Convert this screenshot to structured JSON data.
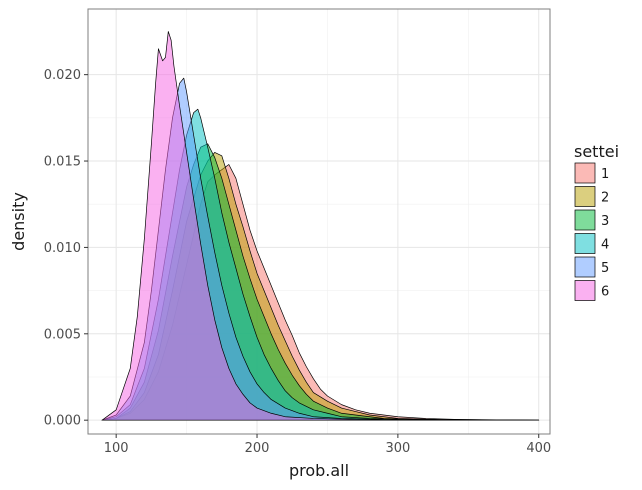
{
  "chart_data": {
    "type": "area",
    "subtype": "density",
    "title": "",
    "xlabel": "prob.all",
    "ylabel": "density",
    "xlim": [
      80,
      408
    ],
    "ylim": [
      -0.0008,
      0.0238
    ],
    "x_ticks": [
      100,
      200,
      300,
      400
    ],
    "y_ticks": [
      0.0,
      0.005,
      0.01,
      0.015,
      0.02
    ],
    "x_tick_labels": [
      "100",
      "200",
      "300",
      "400"
    ],
    "y_tick_labels": [
      "0.000",
      "0.005",
      "0.010",
      "0.015",
      "0.020"
    ],
    "grid": true,
    "legend": {
      "title": "settei",
      "position": "right"
    },
    "series": [
      {
        "name": "1",
        "color": "#F8766D",
        "points": [
          [
            90,
            0
          ],
          [
            100,
            0.0001
          ],
          [
            110,
            0.0004
          ],
          [
            120,
            0.0012
          ],
          [
            130,
            0.0028
          ],
          [
            140,
            0.0055
          ],
          [
            150,
            0.009
          ],
          [
            160,
            0.0125
          ],
          [
            165,
            0.0138
          ],
          [
            170,
            0.0142
          ],
          [
            175,
            0.0145
          ],
          [
            180,
            0.0148
          ],
          [
            185,
            0.014
          ],
          [
            190,
            0.0125
          ],
          [
            195,
            0.011
          ],
          [
            200,
            0.0098
          ],
          [
            205,
            0.0088
          ],
          [
            210,
            0.0078
          ],
          [
            215,
            0.0068
          ],
          [
            220,
            0.0058
          ],
          [
            225,
            0.0049
          ],
          [
            230,
            0.0039
          ],
          [
            235,
            0.0031
          ],
          [
            240,
            0.0024
          ],
          [
            245,
            0.0018
          ],
          [
            250,
            0.0014
          ],
          [
            260,
            0.0009
          ],
          [
            270,
            0.0006
          ],
          [
            280,
            0.0004
          ],
          [
            290,
            0.0003
          ],
          [
            300,
            0.0002
          ],
          [
            320,
            0.0001
          ],
          [
            340,
            5e-05
          ],
          [
            370,
            2e-05
          ],
          [
            400,
            0
          ]
        ]
      },
      {
        "name": "2",
        "color": "#B79F00",
        "points": [
          [
            90,
            0
          ],
          [
            100,
            0.0001
          ],
          [
            110,
            0.0005
          ],
          [
            120,
            0.0016
          ],
          [
            130,
            0.0038
          ],
          [
            140,
            0.0075
          ],
          [
            150,
            0.0115
          ],
          [
            160,
            0.0142
          ],
          [
            165,
            0.015
          ],
          [
            170,
            0.0155
          ],
          [
            175,
            0.0153
          ],
          [
            180,
            0.014
          ],
          [
            185,
            0.0125
          ],
          [
            190,
            0.0112
          ],
          [
            195,
            0.0098
          ],
          [
            200,
            0.0085
          ],
          [
            205,
            0.0075
          ],
          [
            210,
            0.0065
          ],
          [
            215,
            0.0055
          ],
          [
            220,
            0.0046
          ],
          [
            225,
            0.0037
          ],
          [
            230,
            0.0029
          ],
          [
            235,
            0.0022
          ],
          [
            240,
            0.0016
          ],
          [
            250,
            0.0011
          ],
          [
            260,
            0.0007
          ],
          [
            270,
            0.0005
          ],
          [
            280,
            0.0003
          ],
          [
            300,
            0.0001
          ],
          [
            330,
            4e-05
          ],
          [
            370,
            1e-05
          ],
          [
            400,
            0
          ]
        ]
      },
      {
        "name": "3",
        "color": "#00BA38",
        "points": [
          [
            90,
            0
          ],
          [
            100,
            0.0001
          ],
          [
            110,
            0.0007
          ],
          [
            120,
            0.0022
          ],
          [
            130,
            0.0052
          ],
          [
            140,
            0.0095
          ],
          [
            150,
            0.0135
          ],
          [
            155,
            0.0148
          ],
          [
            160,
            0.0158
          ],
          [
            165,
            0.016
          ],
          [
            170,
            0.0152
          ],
          [
            175,
            0.014
          ],
          [
            180,
            0.0125
          ],
          [
            185,
            0.011
          ],
          [
            190,
            0.0095
          ],
          [
            195,
            0.0082
          ],
          [
            200,
            0.007
          ],
          [
            205,
            0.006
          ],
          [
            210,
            0.005
          ],
          [
            215,
            0.0041
          ],
          [
            220,
            0.0033
          ],
          [
            225,
            0.0026
          ],
          [
            230,
            0.002
          ],
          [
            235,
            0.0015
          ],
          [
            240,
            0.0011
          ],
          [
            250,
            0.0007
          ],
          [
            260,
            0.0004
          ],
          [
            270,
            0.0003
          ],
          [
            290,
            0.0001
          ],
          [
            320,
            3e-05
          ],
          [
            360,
            1e-05
          ],
          [
            400,
            0
          ]
        ]
      },
      {
        "name": "4",
        "color": "#00BFC4",
        "points": [
          [
            90,
            0
          ],
          [
            100,
            0.0002
          ],
          [
            110,
            0.0009
          ],
          [
            120,
            0.003
          ],
          [
            130,
            0.007
          ],
          [
            140,
            0.012
          ],
          [
            145,
            0.0145
          ],
          [
            150,
            0.0165
          ],
          [
            155,
            0.0178
          ],
          [
            158,
            0.018
          ],
          [
            160,
            0.0175
          ],
          [
            165,
            0.0158
          ],
          [
            170,
            0.014
          ],
          [
            175,
            0.012
          ],
          [
            180,
            0.0103
          ],
          [
            185,
            0.0088
          ],
          [
            190,
            0.0073
          ],
          [
            195,
            0.006
          ],
          [
            200,
            0.0048
          ],
          [
            205,
            0.0038
          ],
          [
            210,
            0.003
          ],
          [
            215,
            0.0023
          ],
          [
            220,
            0.0017
          ],
          [
            225,
            0.0013
          ],
          [
            230,
            0.001
          ],
          [
            240,
            0.0006
          ],
          [
            250,
            0.0004
          ],
          [
            260,
            0.0002
          ],
          [
            280,
            0.0001
          ],
          [
            310,
            2e-05
          ],
          [
            350,
            1e-05
          ],
          [
            400,
            0
          ]
        ]
      },
      {
        "name": "5",
        "color": "#619CFF",
        "points": [
          [
            90,
            0
          ],
          [
            100,
            0.0003
          ],
          [
            110,
            0.0014
          ],
          [
            120,
            0.0045
          ],
          [
            125,
            0.0075
          ],
          [
            130,
            0.011
          ],
          [
            135,
            0.0145
          ],
          [
            140,
            0.0175
          ],
          [
            145,
            0.0195
          ],
          [
            148,
            0.0198
          ],
          [
            150,
            0.019
          ],
          [
            155,
            0.0165
          ],
          [
            160,
            0.014
          ],
          [
            165,
            0.0118
          ],
          [
            170,
            0.0097
          ],
          [
            175,
            0.0078
          ],
          [
            180,
            0.0062
          ],
          [
            185,
            0.0048
          ],
          [
            190,
            0.0037
          ],
          [
            195,
            0.0028
          ],
          [
            200,
            0.0021
          ],
          [
            205,
            0.0016
          ],
          [
            210,
            0.0012
          ],
          [
            220,
            0.0007
          ],
          [
            230,
            0.0004
          ],
          [
            240,
            0.0002
          ],
          [
            260,
            0.0001
          ],
          [
            300,
            2e-05
          ],
          [
            350,
            1e-05
          ],
          [
            400,
            0
          ]
        ]
      },
      {
        "name": "6",
        "color": "#F564E3",
        "points": [
          [
            90,
            0
          ],
          [
            100,
            0.0006
          ],
          [
            110,
            0.003
          ],
          [
            115,
            0.006
          ],
          [
            120,
            0.0105
          ],
          [
            125,
            0.016
          ],
          [
            128,
            0.0195
          ],
          [
            130,
            0.0215
          ],
          [
            133,
            0.0208
          ],
          [
            135,
            0.021
          ],
          [
            137,
            0.0225
          ],
          [
            139,
            0.022
          ],
          [
            141,
            0.0205
          ],
          [
            145,
            0.0182
          ],
          [
            150,
            0.0155
          ],
          [
            155,
            0.0128
          ],
          [
            160,
            0.0102
          ],
          [
            165,
            0.0078
          ],
          [
            170,
            0.0058
          ],
          [
            175,
            0.0042
          ],
          [
            180,
            0.003
          ],
          [
            185,
            0.0021
          ],
          [
            190,
            0.0015
          ],
          [
            195,
            0.001
          ],
          [
            200,
            0.0007
          ],
          [
            210,
            0.0004
          ],
          [
            220,
            0.0002
          ],
          [
            240,
            0.0001
          ],
          [
            280,
            2e-05
          ],
          [
            340,
            1e-05
          ],
          [
            400,
            0
          ]
        ]
      }
    ]
  }
}
